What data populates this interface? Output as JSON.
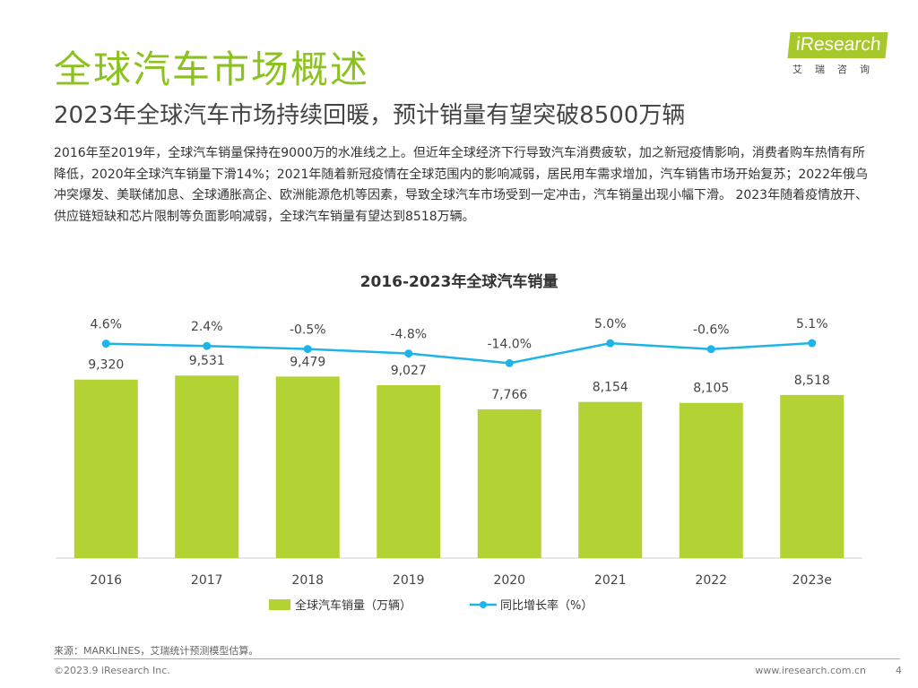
{
  "header": {
    "title": "全球汽车市场概述",
    "subtitle": "2023年全球汽车市场持续回暖，预计销量有望突破8500万辆"
  },
  "logo": {
    "brand": "iResearch",
    "cn": "艾瑞咨询"
  },
  "paragraph": "2016年至2019年，全球汽车销量保持在9000万的水准线之上。但近年全球经济下行导致汽车消费疲软，加之新冠疫情影响，消费者购车热情有所降低，2020年全球汽车销量下滑14%；2021年随着新冠疫情在全球范围内的影响减弱，居民用车需求增加，汽车销售市场开始复苏；2022年俄乌冲突爆发、美联储加息、全球通胀高企、欧洲能源危机等因素，导致全球汽车市场受到一定冲击，汽车销量出现小幅下滑。 2023年随着疫情放开、供应链短缺和芯片限制等负面影响减弱，全球汽车销量有望达到8518万辆。",
  "chart_data": {
    "type": "bar+line",
    "title": "2016-2023年全球汽车销量",
    "categories": [
      "2016",
      "2017",
      "2018",
      "2019",
      "2020",
      "2021",
      "2022",
      "2023e"
    ],
    "series": [
      {
        "name": "全球汽车销量（万辆）",
        "type": "bar",
        "values": [
          9320,
          9531,
          9479,
          9027,
          7766,
          8154,
          8105,
          8518
        ],
        "labels": [
          "9,320",
          "9,531",
          "9,479",
          "9,027",
          "7,766",
          "8,154",
          "8,105",
          "8,518"
        ],
        "color": "#b3d234"
      },
      {
        "name": "同比增长率（%）",
        "type": "line",
        "values": [
          4.6,
          2.4,
          -0.5,
          -4.8,
          -14.0,
          5.0,
          -0.6,
          5.1
        ],
        "labels": [
          "4.6%",
          "2.4%",
          "-0.5%",
          "-4.8%",
          "-14.0%",
          "5.0%",
          "-0.6%",
          "5.1%"
        ],
        "color": "#1eb4e8"
      }
    ],
    "legend": "bottom",
    "grid": false
  },
  "footer": {
    "source": "来源：MARKLINES，艾瑞统计预测模型估算。",
    "copyright": "©2023.9 iResearch Inc.",
    "url": "www.iresearch.com.cn",
    "page": "4"
  }
}
